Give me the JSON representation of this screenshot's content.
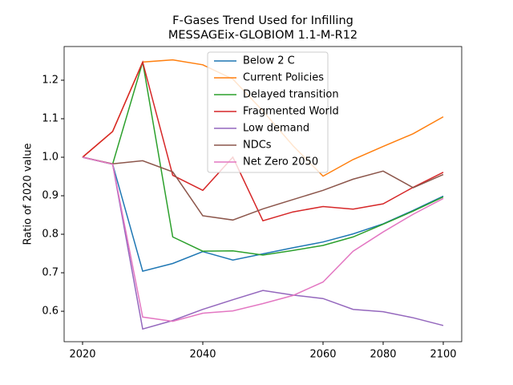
{
  "chart_data": {
    "type": "line",
    "title": [
      "F-Gases Trend Used for Infilling",
      "MESSAGEix-GLOBIOM 1.1-M-R12"
    ],
    "y_label": "Ratio of 2020 value",
    "categories": [
      "2020",
      null,
      null,
      null,
      "2040",
      null,
      null,
      null,
      "2060",
      null,
      "2080",
      null,
      "2100"
    ],
    "ylim": [
      0.521,
      1.2875
    ],
    "yticks": [
      {
        "value": 0.6,
        "label": "0.6"
      },
      {
        "value": 0.7,
        "label": "0.7"
      },
      {
        "value": 0.8,
        "label": "0.8"
      },
      {
        "value": 0.9,
        "label": "0.9"
      },
      {
        "value": 1.0,
        "label": "1.0"
      },
      {
        "value": 1.1,
        "label": "1.1"
      },
      {
        "value": 1.2,
        "label": "1.2"
      }
    ],
    "legend": "upper center",
    "series": [
      {
        "name": "Below 2 C",
        "color": "#1f77b4",
        "values": [
          1.0,
          0.982,
          0.704,
          0.724,
          0.755,
          0.733,
          0.749,
          0.765,
          0.78,
          0.801,
          0.827,
          0.862,
          0.899
        ]
      },
      {
        "name": "Current Policies",
        "color": "#ff7f0e",
        "values": [
          1.0,
          1.067,
          1.247,
          1.253,
          1.24,
          1.203,
          1.12,
          1.03,
          0.951,
          0.994,
          1.028,
          1.061,
          1.105
        ]
      },
      {
        "name": "Delayed transition",
        "color": "#2ca02c",
        "values": [
          1.0,
          0.982,
          1.247,
          0.793,
          0.756,
          0.757,
          0.746,
          0.758,
          0.771,
          0.793,
          0.826,
          0.86,
          0.897
        ]
      },
      {
        "name": "Fragmented World",
        "color": "#d62728",
        "values": [
          1.0,
          1.067,
          1.247,
          0.953,
          0.914,
          1.0,
          0.835,
          0.858,
          0.872,
          0.865,
          0.879,
          0.922,
          0.961
        ]
      },
      {
        "name": "Low demand",
        "color": "#9467bd",
        "values": [
          1.0,
          0.982,
          0.554,
          0.576,
          0.605,
          0.63,
          0.654,
          0.642,
          0.633,
          0.605,
          0.599,
          0.583,
          0.563
        ]
      },
      {
        "name": "NDCs",
        "color": "#8c564b",
        "values": [
          1.0,
          0.983,
          0.991,
          0.962,
          0.848,
          0.837,
          0.866,
          0.89,
          0.914,
          0.943,
          0.964,
          0.921,
          0.955
        ]
      },
      {
        "name": "Net Zero 2050",
        "color": "#e377c2",
        "values": [
          1.0,
          0.982,
          0.585,
          0.574,
          0.595,
          0.601,
          0.62,
          0.641,
          0.676,
          0.756,
          0.806,
          0.852,
          0.893
        ]
      }
    ]
  }
}
